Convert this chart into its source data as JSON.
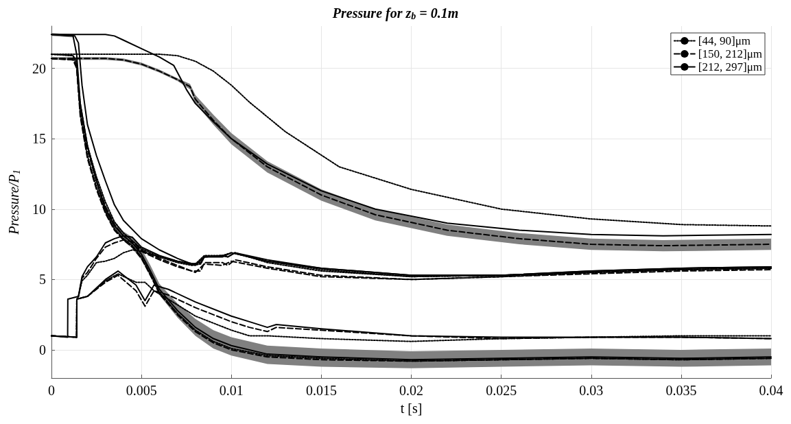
{
  "chart_data": {
    "type": "line",
    "title": "Pressure for z$_{b}$ = 0.1m",
    "xlabel": "t [s]",
    "ylabel": "Pressure/P$_{1}$",
    "xlim": [
      0,
      0.04
    ],
    "xticks": [
      0,
      0.005,
      0.01,
      0.015,
      0.02,
      0.025,
      0.03,
      0.035,
      0.04
    ],
    "ylim": [
      -2,
      23
    ],
    "yticks": [
      0,
      5,
      10,
      15,
      20
    ],
    "grid": true,
    "legend": "top right",
    "marker": "none",
    "series": [
      {
        "name": "[44, 90]μm",
        "color": "#000000",
        "line_style": "dotted",
        "x": [
          0,
          0.002,
          0.004,
          0.006,
          0.007,
          0.008,
          0.009,
          0.01,
          0.011,
          0.013,
          0.016,
          0.02,
          0.025,
          0.03,
          0.035,
          0.04
        ],
        "values": [
          21,
          21,
          21,
          21,
          20.9,
          20.5,
          19.8,
          18.8,
          17.6,
          15.5,
          13,
          11.4,
          10,
          9.3,
          8.9,
          8.8
        ]
      },
      {
        "name": "[150, 212]μm",
        "color": "#000000",
        "line_style": "dashed",
        "x": [
          0,
          0.001,
          0.002,
          0.003,
          0.004,
          0.005,
          0.006,
          0.007,
          0.0077,
          0.008,
          0.009,
          0.01,
          0.012,
          0.015,
          0.018,
          0.022,
          0.026,
          0.03,
          0.034,
          0.04
        ],
        "values": [
          20.7,
          20.7,
          20.7,
          20.7,
          20.6,
          20.3,
          19.8,
          19.2,
          18.7,
          17.8,
          16.3,
          15,
          13,
          11,
          9.6,
          8.5,
          7.9,
          7.5,
          7.4,
          7.5
        ],
        "lower": [
          20.6,
          20.6,
          20.6,
          20.6,
          20.5,
          20.2,
          19.7,
          19.1,
          18.5,
          17.5,
          16,
          14.6,
          12.6,
          10.6,
          9.2,
          8.1,
          7.5,
          7.1,
          7,
          7.1
        ],
        "upper": [
          20.8,
          20.8,
          20.8,
          20.8,
          20.7,
          20.4,
          19.9,
          19.3,
          18.9,
          18.1,
          16.7,
          15.4,
          13.4,
          11.4,
          10,
          8.9,
          8.3,
          7.9,
          7.8,
          7.9
        ]
      },
      {
        "name": "[212, 297]μm",
        "color": "#000000",
        "line_style": "solid",
        "x": [
          0,
          0.001,
          0.002,
          0.003,
          0.0035,
          0.004,
          0.005,
          0.006,
          0.0068,
          0.0075,
          0.008,
          0.009,
          0.01,
          0.012,
          0.015,
          0.018,
          0.022,
          0.026,
          0.03,
          0.034,
          0.04
        ],
        "values": [
          22.4,
          22.4,
          22.4,
          22.4,
          22.3,
          22,
          21.4,
          20.8,
          20.2,
          18.5,
          17.5,
          16.2,
          15,
          13.2,
          11.3,
          10,
          9,
          8.5,
          8.2,
          8.1,
          8.2
        ]
      },
      {
        "color": "#000000",
        "line_style": "dotted",
        "x": [
          0,
          0.0012,
          0.0014,
          0.0016,
          0.002,
          0.0025,
          0.003,
          0.0035,
          0.004,
          0.005,
          0.006,
          0.007,
          0.0078,
          0.0083,
          0.0085,
          0.0095,
          0.0098,
          0.0102,
          0.012,
          0.015,
          0.02,
          0.025,
          0.03,
          0.035,
          0.04
        ],
        "values": [
          21,
          20.9,
          20.5,
          17.5,
          14.5,
          12.3,
          10.5,
          9.1,
          8.3,
          7.2,
          6.6,
          6.2,
          6,
          6.1,
          6.6,
          6.7,
          6.6,
          6.9,
          6.2,
          5.6,
          5.2,
          5.3,
          5.5,
          5.7,
          5.8
        ]
      },
      {
        "color": "#000000",
        "line_style": "dashed",
        "x": [
          0,
          0.0012,
          0.0014,
          0.0016,
          0.002,
          0.0025,
          0.003,
          0.0035,
          0.004,
          0.005,
          0.006,
          0.007,
          0.0078,
          0.0083,
          0.0085,
          0.0095,
          0.0098,
          0.0102,
          0.012,
          0.015,
          0.02,
          0.025,
          0.03,
          0.035,
          0.04
        ],
        "values": [
          20.7,
          20.6,
          20.2,
          17.2,
          14.2,
          12,
          10.2,
          8.9,
          8.1,
          7,
          6.4,
          5.9,
          5.6,
          5.6,
          6.2,
          6.2,
          6,
          6.4,
          5.9,
          5.3,
          5,
          5.2,
          5.5,
          5.7,
          5.8
        ]
      },
      {
        "color": "#000000",
        "line_style": "solid",
        "x": [
          0,
          0.0013,
          0.0015,
          0.0017,
          0.002,
          0.0025,
          0.003,
          0.0035,
          0.004,
          0.005,
          0.006,
          0.007,
          0.0078,
          0.0083,
          0.0085,
          0.0095,
          0.0098,
          0.0102,
          0.012,
          0.015,
          0.02,
          0.025,
          0.03,
          0.035,
          0.04
        ],
        "values": [
          22.4,
          22.3,
          21.8,
          18.8,
          16,
          13.8,
          12,
          10.3,
          9.2,
          7.9,
          7.1,
          6.5,
          6.1,
          6.2,
          6.6,
          6.7,
          6.6,
          6.9,
          6.4,
          5.8,
          5.3,
          5.3,
          5.6,
          5.8,
          5.9
        ]
      },
      {
        "color": "#000000",
        "line_style": "dotted",
        "x": [
          0,
          0.0012,
          0.0014,
          0.0016,
          0.002,
          0.0025,
          0.003,
          0.0035,
          0.004,
          0.0045,
          0.005,
          0.0055,
          0.006,
          0.007,
          0.008,
          0.009,
          0.01,
          0.012,
          0.015,
          0.02,
          0.025,
          0.03,
          0.035,
          0.04
        ],
        "values": [
          21,
          20.9,
          20.2,
          16.8,
          13.8,
          11.6,
          9.8,
          8.6,
          7.9,
          7.4,
          6.6,
          5.4,
          4.1,
          2.6,
          1.4,
          0.6,
          0.1,
          -0.4,
          -0.6,
          -0.8,
          -0.7,
          -0.6,
          -0.7,
          -0.6
        ]
      },
      {
        "color": "#000000",
        "line_style": "dashed",
        "x": [
          0,
          0.0012,
          0.0014,
          0.0016,
          0.002,
          0.0025,
          0.003,
          0.0035,
          0.004,
          0.0045,
          0.005,
          0.0055,
          0.006,
          0.007,
          0.008,
          0.009,
          0.01,
          0.012,
          0.015,
          0.02,
          0.025,
          0.03,
          0.035,
          0.04
        ],
        "values": [
          20.7,
          20.6,
          20,
          16.6,
          13.6,
          11.4,
          9.7,
          8.5,
          7.8,
          7.3,
          6.5,
          5.3,
          4,
          2.5,
          1.3,
          0.5,
          0,
          -0.5,
          -0.7,
          -0.8,
          -0.7,
          -0.6,
          -0.7,
          -0.6
        ]
      },
      {
        "color": "#000000",
        "line_style": "solid",
        "x": [
          0,
          0.0012,
          0.0014,
          0.0016,
          0.002,
          0.0025,
          0.003,
          0.0035,
          0.004,
          0.0045,
          0.005,
          0.0055,
          0.006,
          0.007,
          0.008,
          0.009,
          0.01,
          0.012,
          0.015,
          0.02,
          0.025,
          0.03,
          0.035,
          0.04
        ],
        "values": [
          22.4,
          22.3,
          21,
          17.5,
          14.5,
          12,
          10,
          8.8,
          8.1,
          7.6,
          6.8,
          5.6,
          4.3,
          2.8,
          1.6,
          0.8,
          0.3,
          -0.3,
          -0.5,
          -0.7,
          -0.6,
          -0.5,
          -0.6,
          -0.5
        ],
        "lower": [
          22.3,
          22.2,
          20.8,
          17.3,
          14.3,
          11.8,
          9.7,
          8.5,
          7.8,
          7.2,
          6.4,
          5.2,
          3.9,
          2.3,
          1,
          0.1,
          -0.4,
          -1,
          -1.2,
          -1.3,
          -1.2,
          -1.1,
          -1.2,
          -1.1
        ],
        "upper": [
          22.5,
          22.4,
          21.2,
          17.7,
          14.7,
          12.2,
          10.3,
          9.1,
          8.4,
          8,
          7.2,
          6,
          4.7,
          3.3,
          2.2,
          1.4,
          0.9,
          0.3,
          0.1,
          -0.1,
          0,
          0.1,
          0,
          0.1
        ]
      },
      {
        "color": "#000000",
        "line_style": "dotted",
        "x": [
          0,
          0.0014,
          0.00141,
          0.0015,
          0.0017,
          0.002,
          0.0025,
          0.003,
          0.0035,
          0.004,
          0.0045,
          0.005,
          0.006,
          0.007,
          0.008,
          0.0085,
          0.0095,
          0.01,
          0.012,
          0.015,
          0.02,
          0.025,
          0.03,
          0.035,
          0.04
        ],
        "values": [
          1,
          0.9,
          3.6,
          3.8,
          4.9,
          5.3,
          6.2,
          6.3,
          6.5,
          6.9,
          7.1,
          7,
          6.6,
          6.3,
          6.1,
          6.7,
          6.7,
          6.9,
          6.3,
          5.7,
          5.2,
          5.3,
          5.5,
          5.7,
          5.8
        ]
      },
      {
        "color": "#000000",
        "line_style": "dashed",
        "x": [
          0,
          0.0014,
          0.00141,
          0.0015,
          0.0017,
          0.002,
          0.0025,
          0.003,
          0.0035,
          0.004,
          0.0045,
          0.005,
          0.006,
          0.007,
          0.008,
          0.0085,
          0.0095,
          0.01,
          0.012,
          0.015,
          0.02,
          0.025,
          0.03,
          0.035,
          0.04
        ],
        "values": [
          1,
          0.9,
          3.6,
          3.8,
          5.1,
          5.5,
          6.5,
          7.3,
          7.6,
          7.8,
          7.7,
          7.1,
          6.5,
          6,
          5.5,
          6.1,
          6,
          6.3,
          5.8,
          5.2,
          5,
          5.2,
          5.4,
          5.6,
          5.7
        ]
      },
      {
        "color": "#000000",
        "line_style": "solid",
        "x": [
          0,
          0.0009,
          0.00091,
          0.0015,
          0.0017,
          0.002,
          0.0025,
          0.003,
          0.0035,
          0.004,
          0.0045,
          0.005,
          0.006,
          0.007,
          0.008,
          0.0085,
          0.0095,
          0.01,
          0.012,
          0.015,
          0.02,
          0.025,
          0.03,
          0.035,
          0.04
        ],
        "values": [
          1,
          0.9,
          3.6,
          3.8,
          5.2,
          5.9,
          6.6,
          7.6,
          7.9,
          8.1,
          8,
          7.3,
          6.7,
          6.3,
          6,
          6.6,
          6.6,
          6.9,
          6.3,
          5.8,
          5.3,
          5.3,
          5.6,
          5.8,
          5.9
        ]
      },
      {
        "color": "#000000",
        "line_style": "dotted",
        "x": [
          0,
          0.0014,
          0.00141,
          0.002,
          0.003,
          0.0037,
          0.0047,
          0.0052,
          0.0057,
          0.0065,
          0.008,
          0.01,
          0.011,
          0.012,
          0.015,
          0.02,
          0.025,
          0.03,
          0.035,
          0.04
        ],
        "values": [
          1,
          0.9,
          3.6,
          3.8,
          4.9,
          5.4,
          4.8,
          4.8,
          4.2,
          3.6,
          2.4,
          1.4,
          1,
          1,
          0.8,
          0.6,
          0.8,
          0.9,
          1,
          1
        ]
      },
      {
        "color": "#000000",
        "line_style": "dashed",
        "x": [
          0,
          0.0014,
          0.00141,
          0.002,
          0.003,
          0.0037,
          0.0047,
          0.0052,
          0.0057,
          0.0065,
          0.008,
          0.01,
          0.011,
          0.012,
          0.0125,
          0.015,
          0.02,
          0.025,
          0.03,
          0.035,
          0.04
        ],
        "values": [
          1,
          0.9,
          3.6,
          3.8,
          4.8,
          5.3,
          4.2,
          3.1,
          4.2,
          3.9,
          3,
          2,
          1.6,
          1.3,
          1.6,
          1.4,
          1,
          0.8,
          0.9,
          0.9,
          0.8
        ]
      },
      {
        "color": "#000000",
        "line_style": "solid",
        "x": [
          0,
          0.0014,
          0.00141,
          0.002,
          0.003,
          0.0037,
          0.0047,
          0.0052,
          0.0057,
          0.0065,
          0.008,
          0.01,
          0.011,
          0.012,
          0.0125,
          0.015,
          0.02,
          0.025,
          0.03,
          0.035,
          0.04
        ],
        "values": [
          1,
          0.9,
          3.6,
          3.8,
          5,
          5.6,
          4.6,
          3.5,
          4.6,
          4.3,
          3.4,
          2.4,
          2,
          1.6,
          1.8,
          1.5,
          1,
          0.9,
          0.9,
          0.9,
          0.8
        ]
      }
    ]
  }
}
